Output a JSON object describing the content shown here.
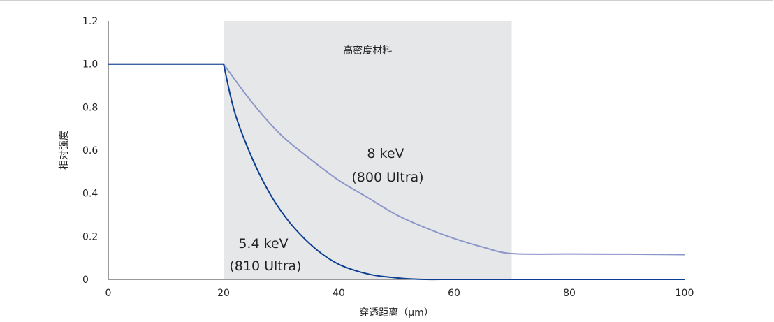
{
  "chart_data": {
    "type": "line",
    "title": "",
    "xlabel": "穿透距离（μm）",
    "ylabel": "相对强度",
    "xlim": [
      0,
      100
    ],
    "ylim": [
      0,
      1.2
    ],
    "x_ticks": [
      "0",
      "20",
      "40",
      "60",
      "80",
      "100"
    ],
    "y_ticks": [
      "0",
      "0.2",
      "0.4",
      "0.6",
      "0.8",
      "1.0",
      "1.2"
    ],
    "grid": false,
    "region": {
      "label": "高密度材料",
      "x_start": 20,
      "x_end": 70,
      "color": "#e6e7e9"
    },
    "series": [
      {
        "label_lines": [
          "8 keV",
          "(800 Ultra)"
        ],
        "color": "#8c96c8",
        "x": [
          0,
          20,
          25,
          30,
          35,
          40,
          45,
          50,
          55,
          60,
          65,
          70,
          80,
          90,
          100
        ],
        "y": [
          1.0,
          1.0,
          0.82,
          0.67,
          0.56,
          0.46,
          0.38,
          0.3,
          0.24,
          0.19,
          0.15,
          0.12,
          0.118,
          0.117,
          0.115
        ]
      },
      {
        "label_lines": [
          "5.4 keV",
          "(810 Ultra)"
        ],
        "color": "#0d3e91",
        "x": [
          0,
          20,
          22,
          25,
          28,
          31,
          34,
          37,
          40,
          43,
          46,
          49,
          52,
          55,
          60,
          70,
          80,
          90,
          100
        ],
        "y": [
          1.0,
          1.0,
          0.77,
          0.56,
          0.4,
          0.28,
          0.19,
          0.12,
          0.07,
          0.04,
          0.02,
          0.01,
          0.003,
          0.0,
          0.0,
          0.0,
          0.0,
          0.0,
          0.0
        ]
      }
    ]
  }
}
